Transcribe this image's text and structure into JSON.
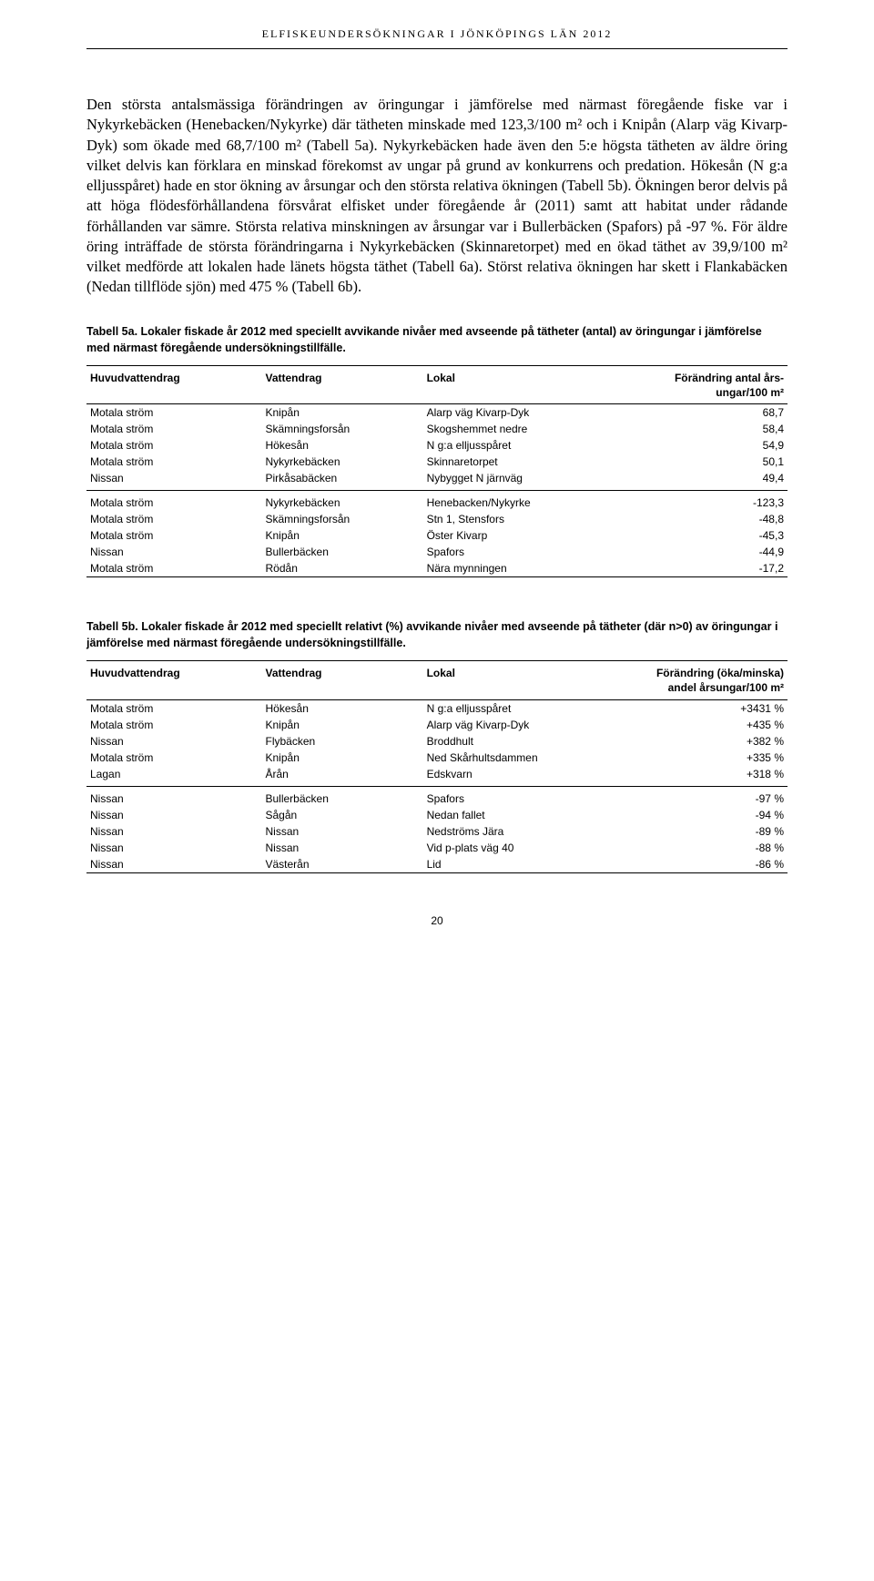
{
  "running_head": "ELFISKEUNDERSÖKNINGAR I JÖNKÖPINGS LÄN 2012",
  "body_paragraph": "Den största antalsmässiga förändringen av öringungar i jämförelse med närmast föregående fiske var i Nykyrkebäcken (Henebacken/Nykyrke) där tätheten minskade med 123,3/100 m² och i Knipån (Alarp väg Kivarp-Dyk) som ökade med 68,7/100 m² (Tabell 5a). Nykyrkebäcken hade även den 5:e högsta tätheten av äldre öring vilket delvis kan förklara en minskad förekomst av ungar på grund av konkurrens och predation. Hökesån (N g:a elljusspåret) hade en stor ökning av årsungar och den största relativa ökningen (Tabell 5b). Ökningen beror delvis på att höga flödesförhållandena försvårat elfisket under föregående år (2011) samt att habitat under rådande förhållanden var sämre. Största relativa minskningen av årsungar var i Bullerbäcken (Spafors) på -97 %. För äldre öring inträffade de största förändringarna i Nykyrkebäcken (Skinnaretorpet) med en ökad täthet av 39,9/100 m² vilket medförde att lokalen hade länets högsta täthet (Tabell 6a). Störst relativa ökningen har skett i Flankabäcken (Nedan tillflöde sjön) med 475 % (Tabell 6b).",
  "table5a": {
    "caption": "Tabell 5a. Lokaler fiskade år 2012 med speciellt avvikande nivåer med avseende på tätheter (antal) av öringungar i jämförelse med närmast föregående undersökningstillfälle.",
    "headers": {
      "h1": "Huvudvattendrag",
      "h2": "Vattendrag",
      "h3": "Lokal",
      "h4a": "Förändring antal års-",
      "h4b": "ungar/100 m²"
    },
    "rows_top": [
      {
        "c1": "Motala ström",
        "c2": "Knipån",
        "c3": "Alarp väg Kivarp-Dyk",
        "c4": "68,7"
      },
      {
        "c1": "Motala ström",
        "c2": "Skämningsforsån",
        "c3": "Skogshemmet nedre",
        "c4": "58,4"
      },
      {
        "c1": "Motala ström",
        "c2": "Hökesån",
        "c3": "N g:a elljusspåret",
        "c4": "54,9"
      },
      {
        "c1": "Motala ström",
        "c2": "Nykyrkebäcken",
        "c3": "Skinnaretorpet",
        "c4": "50,1"
      },
      {
        "c1": "Nissan",
        "c2": "Pirkåsabäcken",
        "c3": "Nybygget N järnväg",
        "c4": "49,4"
      }
    ],
    "rows_bottom": [
      {
        "c1": "Motala ström",
        "c2": "Nykyrkebäcken",
        "c3": "Henebacken/Nykyrke",
        "c4": "-123,3"
      },
      {
        "c1": "Motala ström",
        "c2": "Skämningsforsån",
        "c3": "Stn 1, Stensfors",
        "c4": "-48,8"
      },
      {
        "c1": "Motala ström",
        "c2": "Knipån",
        "c3": "Öster Kivarp",
        "c4": "-45,3"
      },
      {
        "c1": "Nissan",
        "c2": "Bullerbäcken",
        "c3": "Spafors",
        "c4": "-44,9"
      },
      {
        "c1": "Motala ström",
        "c2": "Rödån",
        "c3": "Nära mynningen",
        "c4": "-17,2"
      }
    ]
  },
  "table5b": {
    "caption": "Tabell 5b. Lokaler fiskade år 2012 med speciellt relativt (%) avvikande nivåer med avseende på tätheter (där n>0) av öringungar i jämförelse med närmast föregående undersökningstillfälle.",
    "headers": {
      "h1": "Huvudvattendrag",
      "h2": "Vattendrag",
      "h3": "Lokal",
      "h4a": "Förändring (öka/minska)",
      "h4b": "andel årsungar/100 m²"
    },
    "rows_top": [
      {
        "c1": "Motala ström",
        "c2": "Hökesån",
        "c3": "N g:a elljusspåret",
        "c4": "+3431 %"
      },
      {
        "c1": "Motala ström",
        "c2": "Knipån",
        "c3": "Alarp väg Kivarp-Dyk",
        "c4": "+435 %"
      },
      {
        "c1": "Nissan",
        "c2": "Flybäcken",
        "c3": "Broddhult",
        "c4": "+382 %"
      },
      {
        "c1": "Motala ström",
        "c2": "Knipån",
        "c3": "Ned Skårhultsdammen",
        "c4": "+335 %"
      },
      {
        "c1": "Lagan",
        "c2": "Årån",
        "c3": "Edskvarn",
        "c4": "+318 %"
      }
    ],
    "rows_bottom": [
      {
        "c1": "Nissan",
        "c2": "Bullerbäcken",
        "c3": "Spafors",
        "c4": "-97 %"
      },
      {
        "c1": "Nissan",
        "c2": "Sågån",
        "c3": "Nedan fallet",
        "c4": "-94 %"
      },
      {
        "c1": "Nissan",
        "c2": "Nissan",
        "c3": "Nedströms Jära",
        "c4": "-89 %"
      },
      {
        "c1": "Nissan",
        "c2": "Nissan",
        "c3": "Vid p-plats väg 40",
        "c4": "-88 %"
      },
      {
        "c1": "Nissan",
        "c2": "Västerån",
        "c3": "Lid",
        "c4": "-86 %"
      }
    ]
  },
  "page_number": "20"
}
